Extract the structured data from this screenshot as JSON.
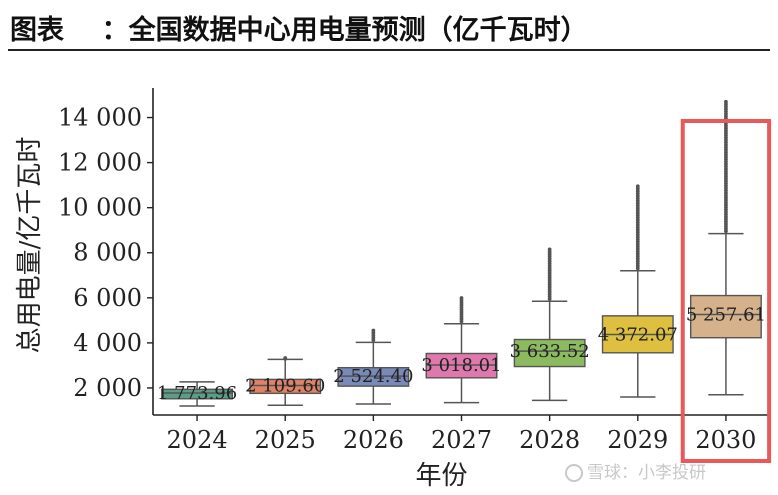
{
  "header": {
    "title": "图表    ：全国数据中心用电量预测（亿千瓦时）"
  },
  "watermark": {
    "text": "雪球：小李投研"
  },
  "highlight_color": "#e85a5a",
  "chart_data": {
    "type": "box",
    "title": "",
    "xlabel": "年份",
    "ylabel": "总用电量/亿千瓦时",
    "ylim": [
      800,
      15000
    ],
    "yticks": [
      2000,
      4000,
      6000,
      8000,
      10000,
      12000,
      14000
    ],
    "ytick_labels": [
      "2 000",
      "4 000",
      "6 000",
      "8 000",
      "10 000",
      "12 000",
      "14 000"
    ],
    "categories": [
      "2024",
      "2025",
      "2026",
      "2027",
      "2028",
      "2029",
      "2030"
    ],
    "highlighted_category": "2030",
    "boxes": [
      {
        "category": "2024",
        "label": "1 773.96",
        "median": 1774,
        "q1": 1520,
        "q3": 1940,
        "whisker_low": 1200,
        "whisker_high": 2270,
        "outlier_max": null,
        "color": "#5a9e86"
      },
      {
        "category": "2025",
        "label": "2 109.60",
        "median": 2110,
        "q1": 1760,
        "q3": 2380,
        "whisker_low": 1230,
        "whisker_high": 3270,
        "outlier_max": 3330,
        "color": "#e08266"
      },
      {
        "category": "2026",
        "label": "2 524.40",
        "median": 2524,
        "q1": 2080,
        "q3": 2900,
        "whisker_low": 1290,
        "whisker_high": 4020,
        "outlier_max": 4550,
        "color": "#7a8ab8"
      },
      {
        "category": "2027",
        "label": "3 018.01",
        "median": 3018,
        "q1": 2450,
        "q3": 3530,
        "whisker_low": 1350,
        "whisker_high": 4850,
        "outlier_max": 5990,
        "color": "#de78ad"
      },
      {
        "category": "2028",
        "label": "3 633.52",
        "median": 3634,
        "q1": 2950,
        "q3": 4150,
        "whisker_low": 1450,
        "whisker_high": 5850,
        "outlier_max": 8150,
        "color": "#8cba5e"
      },
      {
        "category": "2029",
        "label": "4 372.07",
        "median": 4372,
        "q1": 3560,
        "q3": 5200,
        "whisker_low": 1600,
        "whisker_high": 7200,
        "outlier_max": 10950,
        "color": "#dfbf3f"
      },
      {
        "category": "2030",
        "label": "5 257.61",
        "median": 5258,
        "q1": 4230,
        "q3": 6100,
        "whisker_low": 1700,
        "whisker_high": 8850,
        "outlier_max": 14700,
        "color": "#d6b28c"
      }
    ]
  }
}
